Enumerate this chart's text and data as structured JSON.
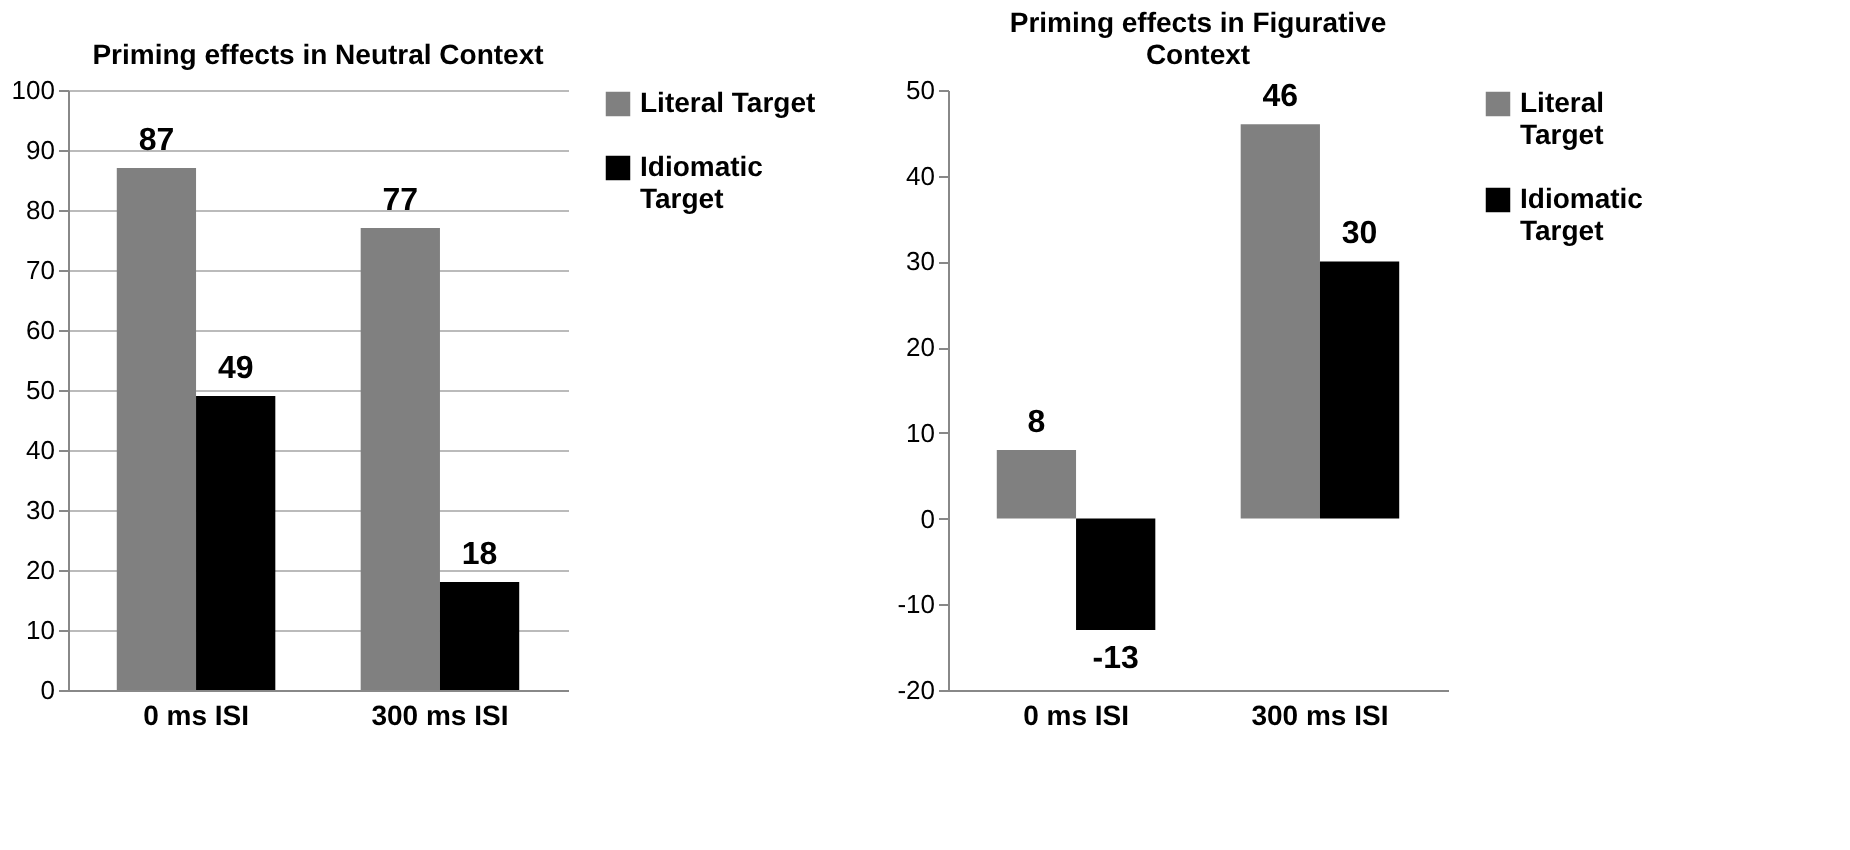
{
  "chart_data": [
    {
      "type": "bar",
      "title": "Priming effects in Neutral Context",
      "categories": [
        "0 ms ISI",
        "300 ms ISI"
      ],
      "series": [
        {
          "name": "Literal Target",
          "color": "#808080",
          "values": [
            87,
            77
          ]
        },
        {
          "name": "Idiomatic Target",
          "color": "#000000",
          "values": [
            49,
            18
          ]
        }
      ],
      "ylim": [
        0,
        100
      ],
      "yticks": [
        0,
        10,
        20,
        30,
        40,
        50,
        60,
        70,
        80,
        90,
        100
      ],
      "grid": "y",
      "legend": "right",
      "data_labels": true
    },
    {
      "type": "bar",
      "title": "Priming effects in Figurative Context",
      "categories": [
        "0 ms ISI",
        "300 ms ISI"
      ],
      "series": [
        {
          "name": "Literal Target",
          "color": "#808080",
          "values": [
            8,
            46
          ]
        },
        {
          "name": "Idiomatic Target",
          "color": "#000000",
          "values": [
            -13,
            30
          ]
        }
      ],
      "ylim": [
        -20,
        50
      ],
      "yticks": [
        -20,
        -10,
        0,
        10,
        20,
        30,
        40,
        50
      ],
      "legend": "right",
      "data_labels": true
    }
  ]
}
